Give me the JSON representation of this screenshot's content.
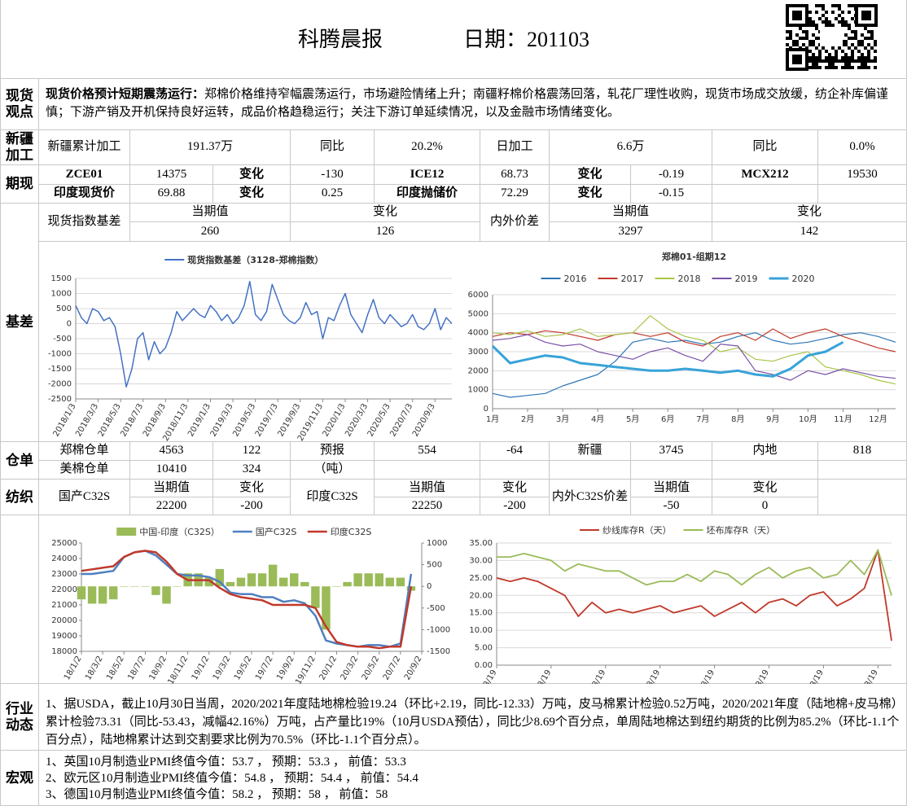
{
  "header": {
    "title": "科腾晨报",
    "date": "日期：201103"
  },
  "sections": {
    "spot_view": "现货观点",
    "xinjiang": "新疆加工",
    "futures": "期现",
    "basis": "基差",
    "warehouse": "仓单",
    "textile": "纺织",
    "industry": "行业动态",
    "macro": "宏观"
  },
  "spot_view": {
    "lead": "现货价格预计短期震荡运行：",
    "text": "郑棉价格维持窄幅震荡运行，市场避险情绪上升；南疆籽棉价格震荡回落，轧花厂理性收购，现货市场成交放缓，纺企补库偏谨慎；下游产销及开机保持良好运转，成品价格趋稳运行；关注下游订单延续情况，以及金融市场情绪变化。"
  },
  "xinjiang": [
    "新疆累计加工",
    "191.37万",
    "同比",
    "20.2%",
    "日加工",
    "6.6万",
    "同比",
    "0.0%"
  ],
  "futures": [
    [
      "ZCE01",
      "14375",
      "变化",
      "-130",
      "ICE12",
      "68.73",
      "变化",
      "-0.19",
      "MCX212",
      "19530"
    ],
    [
      "印度现货价",
      "69.88",
      "变化",
      "0.25",
      "印度抛储价",
      "72.29",
      "变化",
      "-0.15"
    ]
  ],
  "basis": [
    "现货指数基差",
    "当期值",
    "260",
    "变化",
    "126",
    "内外价差",
    "当期值",
    "3297",
    "变化",
    "142"
  ],
  "warehouse": [
    [
      "郑棉仓单",
      "4563",
      "122",
      "预报",
      "554",
      "-64",
      "新疆",
      "3745",
      "内地",
      "818"
    ],
    [
      "美棉仓单",
      "10410",
      "324",
      "（吨）"
    ]
  ],
  "textile": [
    "国产C32S",
    "当期值",
    "22200",
    "变化",
    "-200",
    "印度C32S",
    "当期值",
    "22250",
    "变化",
    "-200",
    "内外C32S价差",
    "当期值",
    "-50",
    "变化",
    "0"
  ],
  "industry": "1、据USDA，截止10月30日当周，2020/2021年度陆地棉检验19.24（环比+2.19，同比-12.33）万吨，皮马棉累计检验0.52万吨，2020/2021年度（陆地棉+皮马棉）累计检验73.31（同比-53.43，减幅42.16%）万吨，占产量比19%（10月USDA预估），同比少8.69个百分点，单周陆地棉达到纽约期货的比例为85.2%（环比-1.1个百分点），陆地棉累计达到交割要求比例为70.5%（环比-1.1个百分点）。",
  "macro": [
    "1、英国10月制造业PMI终值今值：53.7 ，  预期：53.3 ，  前值：53.3",
    "2、欧元区10月制造业PMI终值今值：54.8 ，  预期：54.4 ，  前值：54.4",
    "3、德国10月制造业PMI终值今值：58.2 ，  预期：58 ，  前值：58"
  ],
  "chart_data": [
    {
      "type": "line",
      "grid": true,
      "xlim": [
        0,
        67
      ],
      "ylim": [
        -2500,
        1500
      ],
      "yticks": [
        -2500,
        -2000,
        -1500,
        -1000,
        -500,
        0,
        500,
        1000,
        1500
      ],
      "xticks": [
        {
          "value": 0,
          "label": "2018/1/3"
        },
        {
          "value": 4,
          "label": "2018/3/3"
        },
        {
          "value": 8,
          "label": "2018/5/3"
        },
        {
          "value": 12,
          "label": "2018/7/3"
        },
        {
          "value": 16,
          "label": "2018/9/3"
        },
        {
          "value": 20,
          "label": "2018/11/3"
        },
        {
          "value": 24,
          "label": "2019/1/3"
        },
        {
          "value": 28,
          "label": "2019/3/3"
        },
        {
          "value": 32,
          "label": "2019/5/3"
        },
        {
          "value": 36,
          "label": "2019/7/3"
        },
        {
          "value": 40,
          "label": "2019/9/3"
        },
        {
          "value": 44,
          "label": "2019/11/3"
        },
        {
          "value": 48,
          "label": "2020/1/3"
        },
        {
          "value": 52,
          "label": "2020/3/3"
        },
        {
          "value": 56,
          "label": "2020/5/3"
        },
        {
          "value": 60,
          "label": "2020/7/3"
        },
        {
          "value": 64,
          "label": "2020/9/3"
        }
      ],
      "series": [
        {
          "name": "现货指数基差（3128-郑棉指数）",
          "color": "#4472c4",
          "values": [
            600,
            200,
            0,
            500,
            400,
            100,
            200,
            -100,
            -1000,
            -2100,
            -1500,
            -500,
            -300,
            -1200,
            -600,
            -1000,
            -800,
            -300,
            400,
            100,
            300,
            500,
            300,
            200,
            600,
            400,
            100,
            300,
            0,
            200,
            600,
            1400,
            300,
            100,
            400,
            1300,
            800,
            300,
            100,
            0,
            200,
            700,
            300,
            400,
            -500,
            200,
            100,
            600,
            1000,
            300,
            0,
            -300,
            300,
            800,
            200,
            0,
            300,
            100,
            -100,
            0,
            300,
            -100,
            -200,
            0,
            500,
            -200,
            200,
            0
          ]
        }
      ]
    },
    {
      "type": "line",
      "title": "郑棉01-组期12",
      "grid": true,
      "xlim": [
        0,
        23
      ],
      "ylim": [
        0,
        6000
      ],
      "yticks": [
        0,
        1000,
        2000,
        3000,
        4000,
        5000,
        6000
      ],
      "xticks": [
        {
          "value": 0,
          "label": "1月"
        },
        {
          "value": 2,
          "label": "2月"
        },
        {
          "value": 4,
          "label": "3月"
        },
        {
          "value": 6,
          "label": "4月"
        },
        {
          "value": 8,
          "label": "5月"
        },
        {
          "value": 10,
          "label": "6月"
        },
        {
          "value": 12,
          "label": "7月"
        },
        {
          "value": 14,
          "label": "8月"
        },
        {
          "value": 16,
          "label": "9月"
        },
        {
          "value": 18,
          "label": "10月"
        },
        {
          "value": 20,
          "label": "11月"
        },
        {
          "value": 22,
          "label": "12月"
        }
      ],
      "series": [
        {
          "name": "2016",
          "color": "#2e75b6",
          "width": 1.2,
          "values": [
            800,
            600,
            700,
            800,
            1200,
            1500,
            1800,
            2500,
            3500,
            3700,
            3500,
            3600,
            3400,
            3500,
            3800,
            4000,
            3600,
            3400,
            3500,
            3700,
            3900,
            4000,
            3800,
            3500
          ]
        },
        {
          "name": "2017",
          "color": "#c0392b",
          "width": 1.2,
          "values": [
            3800,
            4000,
            3900,
            4100,
            4000,
            3800,
            3600,
            3900,
            4000,
            3800,
            4000,
            3500,
            3300,
            3800,
            4000,
            3600,
            4200,
            3700,
            4000,
            4200,
            3800,
            3500,
            3200,
            3000
          ]
        },
        {
          "name": "2018",
          "color": "#a9c54a",
          "width": 1.2,
          "values": [
            4000,
            3900,
            4100,
            3800,
            3900,
            4200,
            3800,
            3900,
            4000,
            4900,
            4200,
            3800,
            3600,
            3000,
            3200,
            2600,
            2500,
            2800,
            3000,
            2200,
            2000,
            1800,
            1500,
            1300
          ]
        },
        {
          "name": "2019",
          "color": "#7a52a8",
          "width": 1.2,
          "values": [
            3600,
            3700,
            3900,
            3500,
            3300,
            3400,
            3000,
            2800,
            2600,
            3000,
            3200,
            2800,
            2500,
            3400,
            3300,
            2000,
            1800,
            1500,
            2000,
            1800,
            2100,
            1900,
            1700,
            1600
          ]
        },
        {
          "name": "2020",
          "color": "#38a3d8",
          "width": 3,
          "values": [
            3300,
            2400,
            2600,
            2800,
            2700,
            2400,
            2300,
            2200,
            2100,
            2000,
            2000,
            2100,
            2000,
            1900,
            2000,
            1800,
            1700,
            2100,
            2800,
            3000,
            3500,
            null,
            null,
            null
          ]
        }
      ]
    },
    {
      "type": "combo",
      "grid": false,
      "xlim": [
        0,
        32
      ],
      "ylim": [
        18000,
        25000
      ],
      "yticks": [
        18000,
        19000,
        20000,
        21000,
        22000,
        23000,
        24000,
        25000
      ],
      "y2lim": [
        -1500,
        1000
      ],
      "y2ticks": [
        -1500,
        -1000,
        -500,
        0,
        500,
        1000
      ],
      "xticks": [
        {
          "value": 0,
          "label": "18/1/2"
        },
        {
          "value": 2,
          "label": "18/3/2"
        },
        {
          "value": 4,
          "label": "18/5/2"
        },
        {
          "value": 6,
          "label": "18/7/2"
        },
        {
          "value": 8,
          "label": "18/9/2"
        },
        {
          "value": 10,
          "label": "18/11/2"
        },
        {
          "value": 12,
          "label": "19/1/2"
        },
        {
          "value": 14,
          "label": "19/3/2"
        },
        {
          "value": 16,
          "label": "19/5/2"
        },
        {
          "value": 18,
          "label": "19/7/2"
        },
        {
          "value": 20,
          "label": "19/9/2"
        },
        {
          "value": 22,
          "label": "19/11/2"
        },
        {
          "value": 24,
          "label": "20/1/2"
        },
        {
          "value": 26,
          "label": "20/3/2"
        },
        {
          "value": 28,
          "label": "20/5/2"
        },
        {
          "value": 30,
          "label": "20/7/2"
        },
        {
          "value": 32,
          "label": "20/9/2"
        }
      ],
      "series": [
        {
          "name": "中国-印度（C32S）",
          "type": "bar",
          "axis": "y2",
          "color": "#9bbb59",
          "values": [
            -300,
            -400,
            -400,
            -300,
            0,
            0,
            0,
            -200,
            -400,
            0,
            300,
            300,
            200,
            400,
            100,
            200,
            300,
            300,
            500,
            200,
            300,
            100,
            -500,
            -1000,
            0,
            100,
            300,
            300,
            300,
            200,
            200,
            -100
          ]
        },
        {
          "name": "国产C32S",
          "color": "#4f7fc0",
          "width": 2.5,
          "values": [
            23000,
            23000,
            23100,
            23200,
            24100,
            24400,
            24500,
            24200,
            23600,
            23000,
            22900,
            22900,
            22800,
            22500,
            21800,
            21700,
            21700,
            21500,
            21500,
            21200,
            21300,
            21100,
            20300,
            18700,
            18500,
            18400,
            18300,
            18400,
            18400,
            18300,
            18500,
            23000
          ]
        },
        {
          "name": "印度C32S",
          "color": "#c0392b",
          "width": 2.5,
          "values": [
            23200,
            23300,
            23400,
            23500,
            24100,
            24400,
            24500,
            24400,
            23800,
            23000,
            22600,
            22600,
            22600,
            22100,
            21700,
            21500,
            21400,
            21300,
            21000,
            21000,
            21000,
            21000,
            20800,
            19600,
            18600,
            18400,
            18300,
            18300,
            18200,
            18300,
            18300,
            22200
          ]
        }
      ]
    },
    {
      "type": "line",
      "grid": true,
      "xlim": [
        0,
        29
      ],
      "ylim": [
        0,
        35
      ],
      "yticks": [
        {
          "value": 0,
          "label": "0.00"
        },
        {
          "value": 5,
          "label": "5.00"
        },
        {
          "value": 10,
          "label": "10.00"
        },
        {
          "value": 15,
          "label": "15.00"
        },
        {
          "value": 20,
          "label": "20.00"
        },
        {
          "value": 25,
          "label": "25.00"
        },
        {
          "value": 30,
          "label": "30.00"
        },
        {
          "value": 35,
          "label": "35.00"
        }
      ],
      "xticks": [
        {
          "value": 0,
          "label": "13/8/19"
        },
        {
          "value": 4,
          "label": "14/8/19"
        },
        {
          "value": 8,
          "label": "15/8/19"
        },
        {
          "value": 12,
          "label": "16/8/19"
        },
        {
          "value": 16,
          "label": "17/8/19"
        },
        {
          "value": 20,
          "label": "18/8/19"
        },
        {
          "value": 24,
          "label": "19/8/19"
        },
        {
          "value": 28,
          "label": "20/8/19"
        }
      ],
      "series": [
        {
          "name": "纱线库存R（天）",
          "color": "#c0392b",
          "width": 1.8,
          "values": [
            25,
            24,
            25,
            24,
            22,
            20,
            14,
            18,
            15,
            16,
            15,
            16,
            17,
            15,
            16,
            17,
            14,
            16,
            18,
            15,
            18,
            19,
            17,
            20,
            21,
            17,
            19,
            22,
            33,
            7
          ]
        },
        {
          "name": "坯布库存R（天）",
          "color": "#9bbb59",
          "width": 1.8,
          "values": [
            31,
            31,
            32,
            31,
            30,
            27,
            29,
            28,
            27,
            27,
            25,
            23,
            24,
            24,
            26,
            24,
            27,
            26,
            23,
            26,
            28,
            25,
            27,
            28,
            25,
            26,
            30,
            26,
            33,
            20
          ]
        }
      ]
    }
  ]
}
